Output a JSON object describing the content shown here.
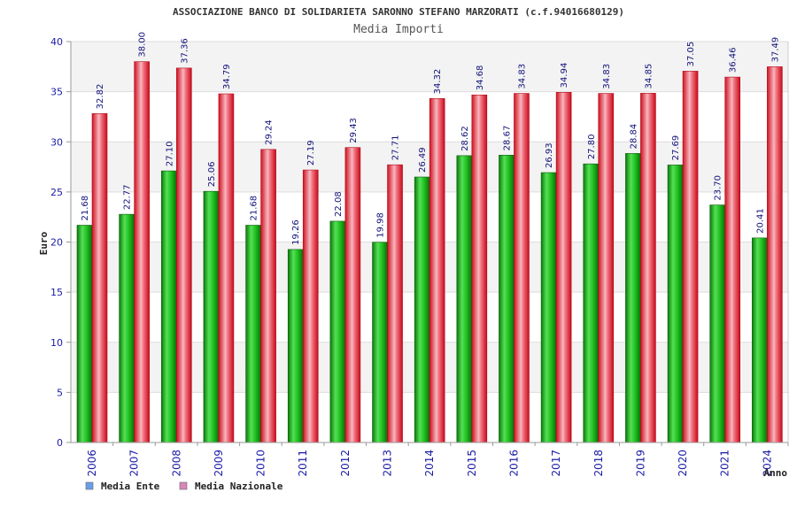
{
  "chart_data": {
    "type": "bar",
    "title": "ASSOCIAZIONE BANCO DI SOLIDARIETA SARONNO STEFANO MARZORATI (c.f.94016680129)",
    "subtitle": "Media Importi",
    "xlabel": "Anno",
    "ylabel": "Euro",
    "ylim": [
      0,
      40
    ],
    "yticks": [
      "0",
      "5",
      "10",
      "15",
      "20",
      "25",
      "30",
      "35",
      "40"
    ],
    "grid": true,
    "legend_position": "bottom-left",
    "categories": [
      "2006",
      "2007",
      "2008",
      "2009",
      "2010",
      "2011",
      "2012",
      "2013",
      "2014",
      "2015",
      "2016",
      "2017",
      "2018",
      "2019",
      "2020",
      "2021",
      "2024"
    ],
    "series": [
      {
        "name": "Media Ente",
        "color": "#22aa22",
        "values": [
          21.68,
          22.77,
          27.1,
          25.06,
          21.68,
          19.26,
          22.08,
          19.98,
          26.49,
          28.62,
          28.67,
          26.93,
          27.8,
          28.84,
          27.69,
          23.7,
          20.41
        ],
        "labels": [
          "21.68",
          "22.77",
          "27.10",
          "25.06",
          "21.68",
          "19.26",
          "22.08",
          "19.98",
          "26.49",
          "28.62",
          "28.67",
          "26.93",
          "27.80",
          "28.84",
          "27.69",
          "23.70",
          "20.41"
        ]
      },
      {
        "name": "Media Nazionale",
        "color": "#ee2233",
        "values": [
          32.82,
          38.0,
          37.36,
          34.79,
          29.24,
          27.19,
          29.43,
          27.71,
          34.32,
          34.68,
          34.83,
          34.94,
          34.83,
          34.85,
          37.05,
          36.46,
          37.49
        ],
        "labels": [
          "32.82",
          "38.00",
          "37.36",
          "34.79",
          "29.24",
          "27.19",
          "29.43",
          "27.71",
          "34.32",
          "34.68",
          "34.83",
          "34.94",
          "34.83",
          "34.85",
          "37.05",
          "36.46",
          "37.49"
        ]
      }
    ],
    "legend": [
      {
        "name": "Media Ente",
        "swatch_color": "#6a9ee8"
      },
      {
        "name": "Media Nazionale",
        "swatch_color": "#d886b8"
      }
    ]
  }
}
